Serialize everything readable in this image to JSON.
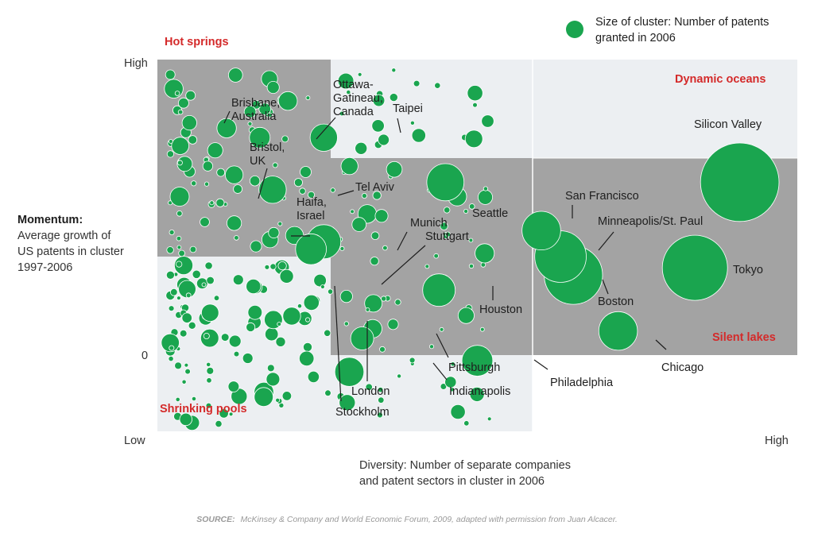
{
  "chart_data": {
    "type": "scatter",
    "subtype": "bubble",
    "xlabel": [
      "Diversity: Number of separate companies",
      "and patent sectors in cluster in 2006"
    ],
    "ylabel_title": "Momentum:",
    "ylabel": [
      "Average growth of",
      "US patents in cluster",
      "1997-2006"
    ],
    "x_ticks": {
      "low": "Low",
      "high": "High"
    },
    "y_ticks": {
      "high": "High",
      "zero": "0",
      "low": "Low"
    },
    "xlim": [
      0,
      1
    ],
    "ylim": [
      0,
      1
    ],
    "zero_y": 0.2,
    "quadrants": [
      {
        "name": "Hot springs",
        "position": "top-left"
      },
      {
        "name": "Dynamic oceans",
        "position": "top-right"
      },
      {
        "name": "Shrinking pools",
        "position": "bottom-left"
      },
      {
        "name": "Silent lakes",
        "position": "bottom-right"
      }
    ],
    "legend": {
      "label": [
        "Size of cluster: Number of patents",
        "granted in 2006"
      ],
      "position": "top-right"
    },
    "source_prefix": "SOURCE:",
    "source": "McKinsey & Company and World Economic Forum, 2009, adapted with permission from Juan Alcacer.",
    "series": [
      {
        "name": "Labeled clusters",
        "points": [
          {
            "name": "Silicon Valley",
            "x": 0.91,
            "y": 0.67,
            "size": 5.8
          },
          {
            "name": "Tokyo",
            "x": 0.84,
            "y": 0.44,
            "size": 4.0
          },
          {
            "name": "Boston",
            "x": 0.65,
            "y": 0.42,
            "size": 3.2
          },
          {
            "name": "Minneapolis/St. Paul",
            "x": 0.63,
            "y": 0.47,
            "size": 2.5
          },
          {
            "name": "San Francisco",
            "x": 0.6,
            "y": 0.54,
            "size": 1.4
          },
          {
            "name": "Seattle",
            "x": 0.45,
            "y": 0.67,
            "size": 1.3
          },
          {
            "name": "Houston",
            "x": 0.44,
            "y": 0.38,
            "size": 1.0
          },
          {
            "name": "Chicago",
            "x": 0.72,
            "y": 0.27,
            "size": 1.4
          },
          {
            "name": "Philadelphia",
            "x": 0.5,
            "y": 0.19,
            "size": 0.9
          },
          {
            "name": "Pittsburgh",
            "x": 0.32,
            "y": 0.25,
            "size": 0.5
          },
          {
            "name": "Indianapolis",
            "x": 0.3,
            "y": 0.16,
            "size": 0.8
          },
          {
            "name": "London",
            "x": 0.21,
            "y": 0.31,
            "size": 0.3
          },
          {
            "name": "Stockholm",
            "x": 0.15,
            "y": 0.39,
            "size": 0.2
          },
          {
            "name": "Munich",
            "x": 0.26,
            "y": 0.51,
            "size": 1.1
          },
          {
            "name": "Stuttgart",
            "x": 0.24,
            "y": 0.49,
            "size": 0.9
          },
          {
            "name": "Tel Aviv",
            "x": 0.18,
            "y": 0.65,
            "size": 0.7
          },
          {
            "name": "Taipei",
            "x": 0.26,
            "y": 0.79,
            "size": 0.7
          },
          {
            "name": "Ottawa-Gatineau, Canada",
            "x": 0.16,
            "y": 0.79,
            "size": 0.4
          },
          {
            "name": "Bristol, UK",
            "x": 0.12,
            "y": 0.69,
            "size": 0.3
          },
          {
            "name": "Haifa, Israel",
            "x": 0.12,
            "y": 0.56,
            "size": 0.2
          },
          {
            "name": "Brisbane, Australia",
            "x": 0.05,
            "y": 0.83,
            "size": 0.2
          }
        ]
      }
    ],
    "label_texts": {
      "Silicon Valley": [
        "Silicon Valley"
      ],
      "Tokyo": [
        "Tokyo"
      ],
      "Boston": [
        "Boston"
      ],
      "Minneapolis/St. Paul": [
        "Minneapolis/St. Paul"
      ],
      "San Francisco": [
        "San Francisco"
      ],
      "Seattle": [
        "Seattle"
      ],
      "Houston": [
        "Houston"
      ],
      "Chicago": [
        "Chicago"
      ],
      "Philadelphia": [
        "Philadelphia"
      ],
      "Pittsburgh": [
        "Pittsburgh"
      ],
      "Indianapolis": [
        "Indianapolis"
      ],
      "London": [
        "London"
      ],
      "Stockholm": [
        "Stockholm"
      ],
      "Munich": [
        "Munich"
      ],
      "Stuttgart": [
        "Stuttgart"
      ],
      "Tel Aviv": [
        "Tel Aviv"
      ],
      "Taipei": [
        "Taipei"
      ],
      "Ottawa-Gatineau, Canada": [
        "Ottawa-",
        "Gatineau,",
        "Canada"
      ],
      "Bristol, UK": [
        "Bristol,",
        "UK"
      ],
      "Haifa, Israel": [
        "Haifa,",
        "Israel"
      ],
      "Brisbane, Australia": [
        "Brisbane,",
        "Australia"
      ]
    },
    "colors": {
      "bubble": "#1aa54f",
      "band_dark": "#a3a3a3",
      "band_light": "#eceff2",
      "quadrant_label": "#d42a2a"
    }
  }
}
